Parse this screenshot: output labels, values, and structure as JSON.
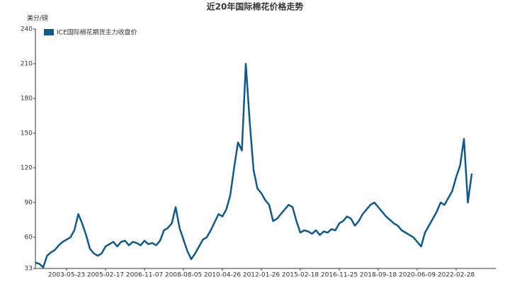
{
  "chart_data": {
    "type": "line",
    "title": "近20年国际棉花价格走势",
    "y_label": "美分/磅",
    "categories": [
      null,
      null,
      null,
      null,
      null,
      null,
      null,
      null,
      "2003-05-23",
      null,
      null,
      null,
      null,
      null,
      null,
      null,
      null,
      null,
      "2005-02-17",
      null,
      null,
      null,
      null,
      null,
      null,
      null,
      null,
      null,
      "2006-11-07",
      null,
      null,
      null,
      null,
      null,
      null,
      null,
      null,
      null,
      "2008-08-05",
      null,
      null,
      null,
      null,
      null,
      null,
      null,
      null,
      null,
      "2010-04-26",
      null,
      null,
      null,
      null,
      null,
      null,
      null,
      null,
      null,
      "2012-01-26",
      null,
      null,
      null,
      null,
      null,
      null,
      null,
      null,
      null,
      "2015-02-18",
      null,
      null,
      null,
      null,
      null,
      null,
      null,
      null,
      null,
      "2016-11-25",
      null,
      null,
      null,
      null,
      null,
      null,
      null,
      null,
      null,
      "2018-09-18",
      null,
      null,
      null,
      null,
      null,
      null,
      null,
      null,
      null,
      "2020-06-09",
      null,
      null,
      null,
      null,
      null,
      null,
      null,
      null,
      null,
      "2022-02-28",
      null,
      null,
      null,
      null
    ],
    "series": [
      {
        "name": "ICE国际棉花期货主力收盘价",
        "color": "#0f5a8c",
        "values": [
          38,
          37,
          34,
          44,
          47,
          49,
          53,
          56,
          58,
          60,
          66,
          80,
          72,
          62,
          50,
          46,
          44,
          46,
          52,
          54,
          56,
          52,
          56,
          57,
          53,
          56,
          55,
          53,
          57,
          54,
          55,
          53,
          57,
          66,
          68,
          72,
          86,
          68,
          58,
          48,
          41,
          46,
          52,
          58,
          60,
          66,
          73,
          80,
          78,
          84,
          96,
          120,
          142,
          135,
          210,
          160,
          118,
          102,
          98,
          92,
          88,
          74,
          76,
          80,
          84,
          88,
          86,
          74,
          64,
          66,
          65,
          63,
          66,
          62,
          65,
          64,
          67,
          66,
          72,
          74,
          78,
          76,
          70,
          74,
          80,
          84,
          88,
          90,
          86,
          82,
          78,
          75,
          72,
          70,
          66,
          64,
          62,
          60,
          56,
          52,
          64,
          70,
          76,
          82,
          90,
          88,
          94,
          100,
          112,
          122,
          145,
          90,
          115
        ]
      }
    ],
    "ylim": [
      33,
      240
    ],
    "yticks": [
      33,
      60,
      90,
      120,
      150,
      180,
      210,
      240
    ],
    "grid": false,
    "legend": "top-left"
  }
}
